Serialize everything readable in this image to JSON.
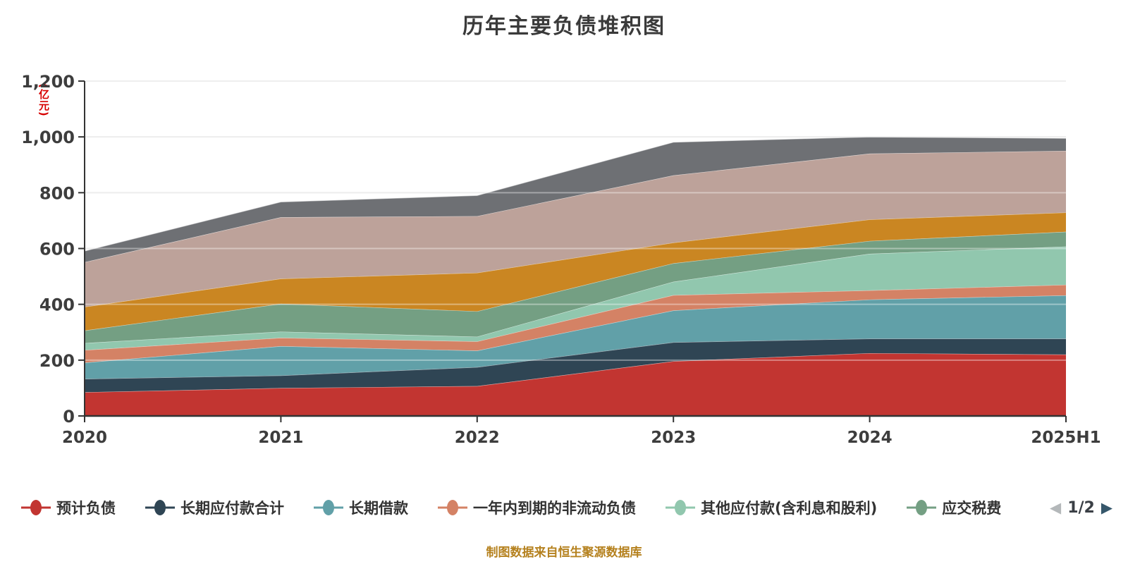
{
  "title": "历年主要负债堆积图",
  "y_axis_unit": "(亿元)",
  "footer": "制图数据来自恒生聚源数据库",
  "legend": {
    "pagination": {
      "label": "1/2",
      "prev_icon": "left-triangle",
      "next_icon": "right-triangle"
    }
  },
  "chart_data": {
    "type": "area",
    "stacked": true,
    "grid": true,
    "legend_position": "bottom",
    "title": "历年主要负债堆积图",
    "ylabel": "(亿元)",
    "ylim": [
      0,
      1200
    ],
    "y_ticks": [
      "0",
      "200",
      "400",
      "600",
      "800",
      "1,000",
      "1,200"
    ],
    "categories": [
      "2020",
      "2021",
      "2022",
      "2023",
      "2024",
      "2025H1"
    ],
    "series": [
      {
        "name": "预计负债",
        "color": "#c23531",
        "values": [
          85,
          100,
          107,
          196,
          225,
          220
        ]
      },
      {
        "name": "长期应付款合计",
        "color": "#2f4554",
        "values": [
          48,
          45,
          68,
          68,
          52,
          57
        ]
      },
      {
        "name": "长期借款",
        "color": "#61a0a8",
        "values": [
          58,
          105,
          59,
          114,
          140,
          155
        ]
      },
      {
        "name": "一年内到期的非流动负债",
        "color": "#d48265",
        "values": [
          45,
          30,
          33,
          55,
          33,
          38
        ]
      },
      {
        "name": "其他应付款(含利息和股利)",
        "color": "#91c7ae",
        "values": [
          25,
          22,
          17,
          48,
          131,
          137
        ]
      },
      {
        "name": "应交税费",
        "color": "#749f83",
        "values": [
          45,
          100,
          91,
          66,
          46,
          53
        ]
      },
      {
        "name": "",
        "color": "#ca8622",
        "values": [
          85,
          90,
          138,
          74,
          77,
          69
        ]
      },
      {
        "name": "",
        "color": "#bda29a",
        "values": [
          160,
          220,
          203,
          241,
          236,
          221
        ]
      },
      {
        "name": "",
        "color": "#6e7074",
        "values": [
          40,
          55,
          74,
          119,
          60,
          45
        ]
      }
    ]
  }
}
